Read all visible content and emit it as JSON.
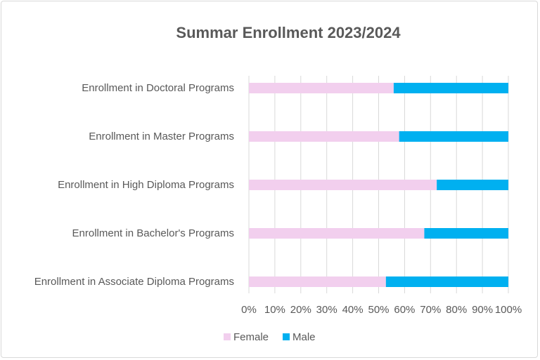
{
  "chart_data": {
    "type": "bar",
    "orientation": "horizontal",
    "stacking": "percent",
    "title": "Summar Enrollment 2023/2024",
    "categories": [
      "Enrollment in Doctoral Programs",
      "Enrollment in Master Programs",
      "Enrollment in High Diploma Programs",
      "Enrollment in Bachelor's Programs",
      "Enrollment in Associate Diploma Programs"
    ],
    "series": [
      {
        "name": "Female",
        "color": "#f2cfee",
        "values": [
          55.8,
          57.9,
          72.4,
          67.6,
          52.8
        ]
      },
      {
        "name": "Male",
        "color": "#00b0f0",
        "values": [
          44.2,
          42.1,
          27.6,
          32.4,
          47.2
        ]
      }
    ],
    "xticks": [
      "0%",
      "10%",
      "20%",
      "30%",
      "40%",
      "50%",
      "60%",
      "70%",
      "80%",
      "90%",
      "100%"
    ],
    "xlim": [
      0,
      100
    ],
    "grid": true,
    "legend": "bottom"
  }
}
